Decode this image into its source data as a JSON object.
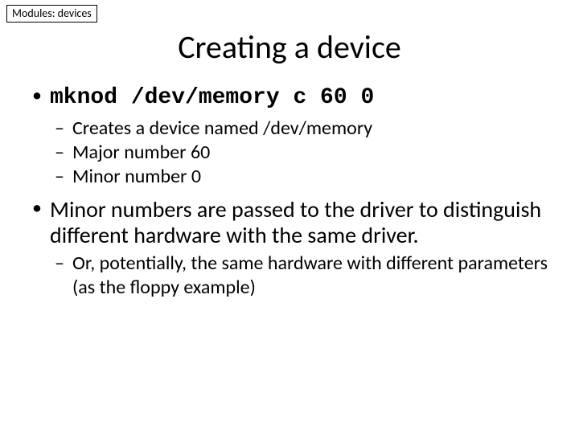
{
  "tag": "Modules: devices",
  "title": "Creating a device",
  "bullets": [
    {
      "text": "mknod /dev/memory c 60 0",
      "is_code": true,
      "sub": [
        "Creates a device named /dev/memory",
        "Major number 60",
        "Minor number 0"
      ]
    },
    {
      "text": "Minor numbers are passed to the driver to distinguish different hardware with the same driver.",
      "is_code": false,
      "sub": [
        "Or, potentially, the same hardware with different parameters (as the floppy example)"
      ]
    }
  ]
}
